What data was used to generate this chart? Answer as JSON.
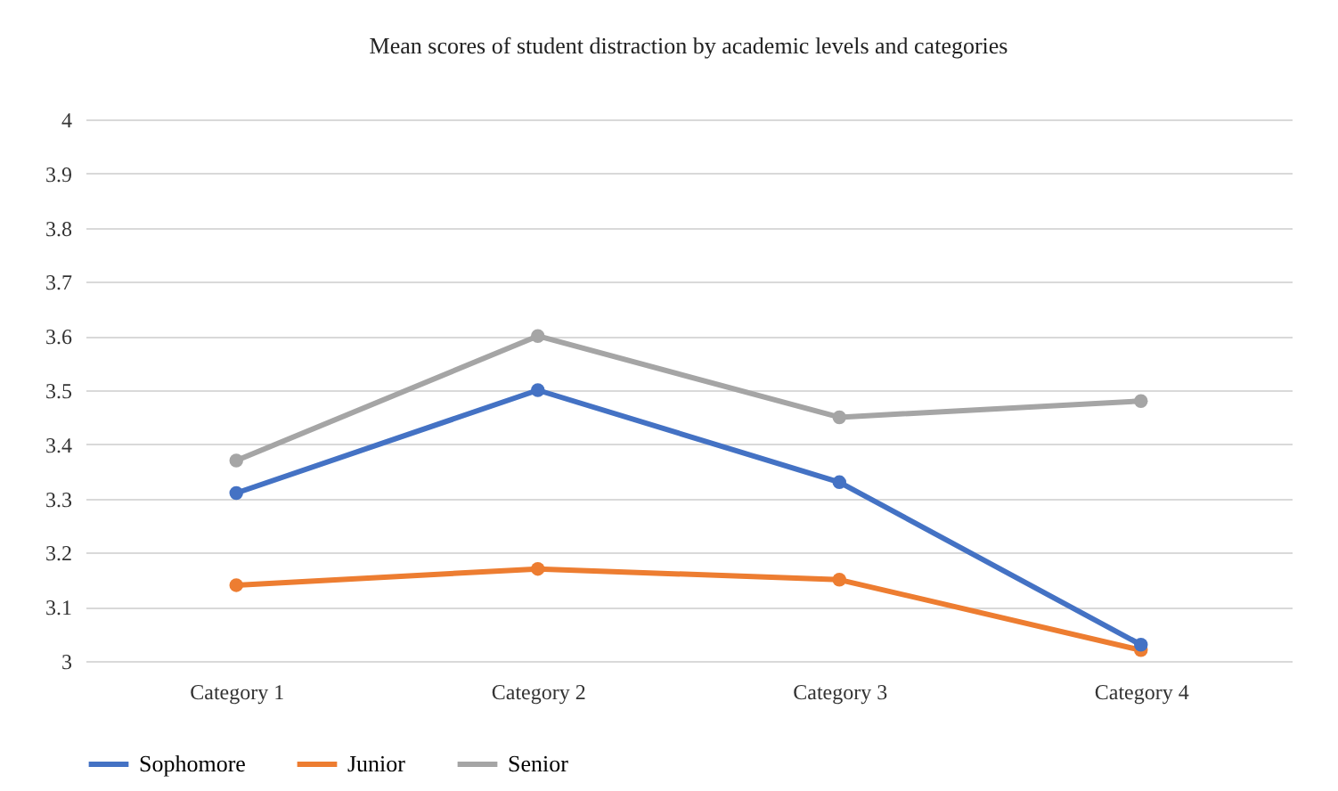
{
  "chart_data": {
    "type": "line",
    "title": "Mean scores of student distraction by academic levels and categories",
    "categories": [
      "Category 1",
      "Category 2",
      "Category 3",
      "Category 4"
    ],
    "series": [
      {
        "name": "Sophomore",
        "color": "#4472c4",
        "values": [
          3.31,
          3.5,
          3.33,
          3.03
        ]
      },
      {
        "name": "Junior",
        "color": "#ed7d31",
        "values": [
          3.14,
          3.17,
          3.15,
          3.02
        ]
      },
      {
        "name": "Senior",
        "color": "#a5a5a5",
        "values": [
          3.37,
          3.6,
          3.45,
          3.48
        ]
      }
    ],
    "ylim": [
      3,
      4
    ],
    "yticks": [
      3,
      3.1,
      3.2,
      3.3,
      3.4,
      3.5,
      3.6,
      3.7,
      3.8,
      3.9,
      4
    ],
    "grid": "y",
    "legend": "bottom",
    "marker": "circle"
  }
}
